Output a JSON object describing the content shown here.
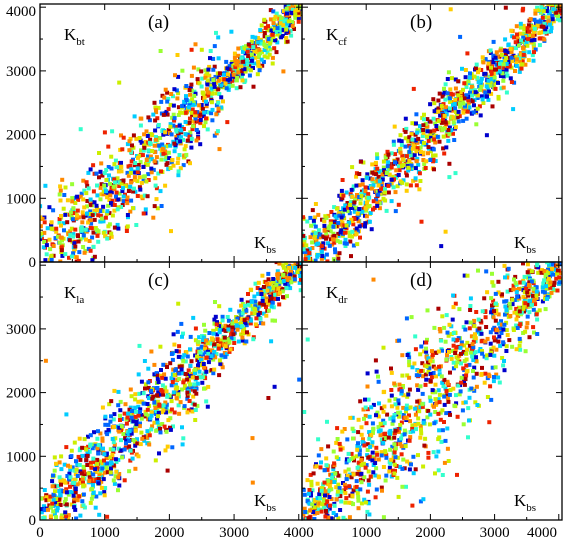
{
  "chart_data": {
    "type": "scatter",
    "layout": "2x2 panels sharing axes",
    "xlim": [
      0,
      4050
    ],
    "ylim": [
      0,
      4050
    ],
    "x_ticks": [
      0,
      1000,
      2000,
      3000,
      4000
    ],
    "y_ticks": [
      0,
      1000,
      2000,
      3000,
      4000
    ],
    "x_tick_labels": [
      "0",
      "1000",
      "2000",
      "3000",
      "4000"
    ],
    "y_tick_labels": [
      "0",
      "1000",
      "2000",
      "3000",
      "4000"
    ],
    "point_colors": [
      "#0000cc",
      "#0066ff",
      "#00ccff",
      "#33ffcc",
      "#99ff33",
      "#ccee00",
      "#ffcc00",
      "#ff8800",
      "#ee2200",
      "#aa0000"
    ],
    "panels": [
      {
        "letter": "(a)",
        "ylabel_main": "K",
        "ylabel_sub": "bt",
        "xlabel_main": "K",
        "xlabel_sub": "bs",
        "spread": [
          {
            "x": 0,
            "sd": 400
          },
          {
            "x": 1000,
            "sd": 380
          },
          {
            "x": 2000,
            "sd": 400
          },
          {
            "x": 2800,
            "sd": 240
          },
          {
            "x": 3000,
            "sd": 100
          },
          {
            "x": 3300,
            "sd": 200
          },
          {
            "x": 4000,
            "sd": 120
          }
        ],
        "outliers": 30
      },
      {
        "letter": "(b)",
        "ylabel_main": "K",
        "ylabel_sub": "cf",
        "xlabel_main": "K",
        "xlabel_sub": "bs",
        "spread": [
          {
            "x": 0,
            "sd": 300
          },
          {
            "x": 1000,
            "sd": 260
          },
          {
            "x": 2000,
            "sd": 260
          },
          {
            "x": 3000,
            "sd": 230
          },
          {
            "x": 4000,
            "sd": 140
          }
        ],
        "outliers": 25
      },
      {
        "letter": "(c)",
        "ylabel_main": "K",
        "ylabel_sub": "la",
        "xlabel_main": "K",
        "xlabel_sub": "bs",
        "spread": [
          {
            "x": 0,
            "sd": 300
          },
          {
            "x": 1000,
            "sd": 320
          },
          {
            "x": 2000,
            "sd": 380
          },
          {
            "x": 2800,
            "sd": 220
          },
          {
            "x": 3000,
            "sd": 90
          },
          {
            "x": 3300,
            "sd": 200
          },
          {
            "x": 4000,
            "sd": 120
          }
        ],
        "outliers": 28
      },
      {
        "letter": "(d)",
        "ylabel_main": "K",
        "ylabel_sub": "dr",
        "xlabel_main": "K",
        "xlabel_sub": "bs",
        "spread": [
          {
            "x": 0,
            "sd": 250
          },
          {
            "x": 1000,
            "sd": 480
          },
          {
            "x": 2000,
            "sd": 600
          },
          {
            "x": 3000,
            "sd": 480
          },
          {
            "x": 4000,
            "sd": 180
          }
        ],
        "outliers": 20
      }
    ],
    "points_per_panel": 1300
  }
}
